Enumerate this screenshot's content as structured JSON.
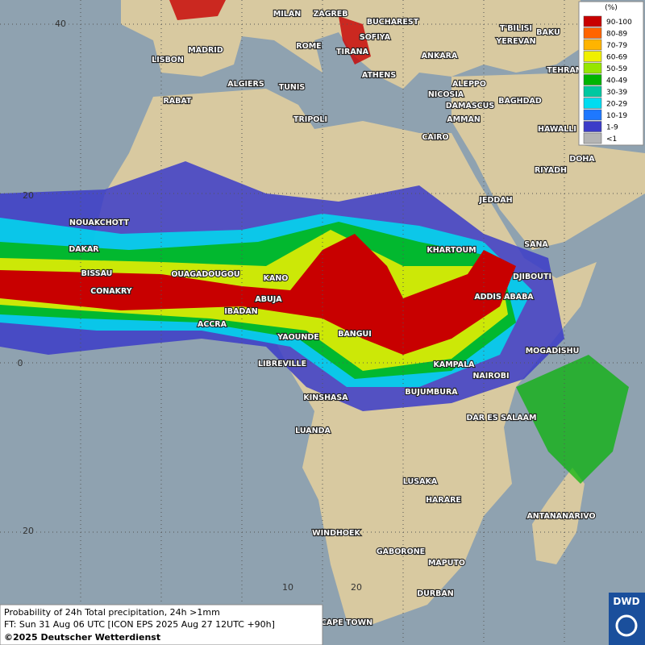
{
  "legend": {
    "title": "(%)",
    "items": [
      {
        "label": "90-100",
        "color": "#c80000"
      },
      {
        "label": "80-89",
        "color": "#ff6400"
      },
      {
        "label": "70-79",
        "color": "#ffb400"
      },
      {
        "label": "60-69",
        "color": "#f0f000"
      },
      {
        "label": "50-59",
        "color": "#96e600"
      },
      {
        "label": "40-49",
        "color": "#00b400"
      },
      {
        "label": "30-39",
        "color": "#00c8a0"
      },
      {
        "label": "20-29",
        "color": "#00dcf0"
      },
      {
        "label": "10-19",
        "color": "#1e78ff"
      },
      {
        "label": "1-9",
        "color": "#3c3cc8"
      },
      {
        "label": "<1",
        "color": "#b4b4b4"
      }
    ]
  },
  "grid_labels": [
    "40",
    "20",
    "0",
    "20",
    "10",
    "20"
  ],
  "cities": [
    "MILAN",
    "ZAGREB",
    "BUCHAREST",
    "SOFIYA",
    "ROME",
    "TIRANA",
    "MADRID",
    "LISBON",
    "ANKARA",
    "T'BILISI",
    "BAKU",
    "YEREVAN",
    "TEHRAN",
    "ATHENS",
    "ALGIERS",
    "TUNIS",
    "ALEPPO",
    "NICOSIA",
    "RABAT",
    "DAMASCUS",
    "BAGHDAD",
    "AMMAN",
    "TRIPOLI",
    "HAWALLI",
    "CAIRO",
    "DOHA",
    "RIYADH",
    "JEDDAH",
    "NOUAKCHOTT",
    "DAKAR",
    "KHARTOUM",
    "SANA",
    "BISSAU",
    "OUAGADOUGOU",
    "KANO",
    "DJIBOUTI",
    "CONAKRY",
    "ABUJA",
    "ADDIS ABABA",
    "IBADAN",
    "ACCRA",
    "BANGUI",
    "YAOUNDE",
    "MOGADISHU",
    "LIBREVILLE",
    "KAMPALA",
    "NAIROBI",
    "BUJUMBURA",
    "KINSHASA",
    "DAR ES SALAAM",
    "LUANDA",
    "LUSAKA",
    "HARARE",
    "ANTANANARIVO",
    "WINDHOEK",
    "GABORONE",
    "MAPUTO",
    "DURBAN",
    "CAPE TOWN"
  ],
  "footer": {
    "line1": "Probability of 24h Total precipitation, 24h >1mm",
    "line2": "FT: Sun 31 Aug 06 UTC [ICON EPS 2025 Aug 27 12UTC +90h]",
    "line3": "©2025 Deutscher Wetterdienst"
  },
  "logo": "DWD"
}
